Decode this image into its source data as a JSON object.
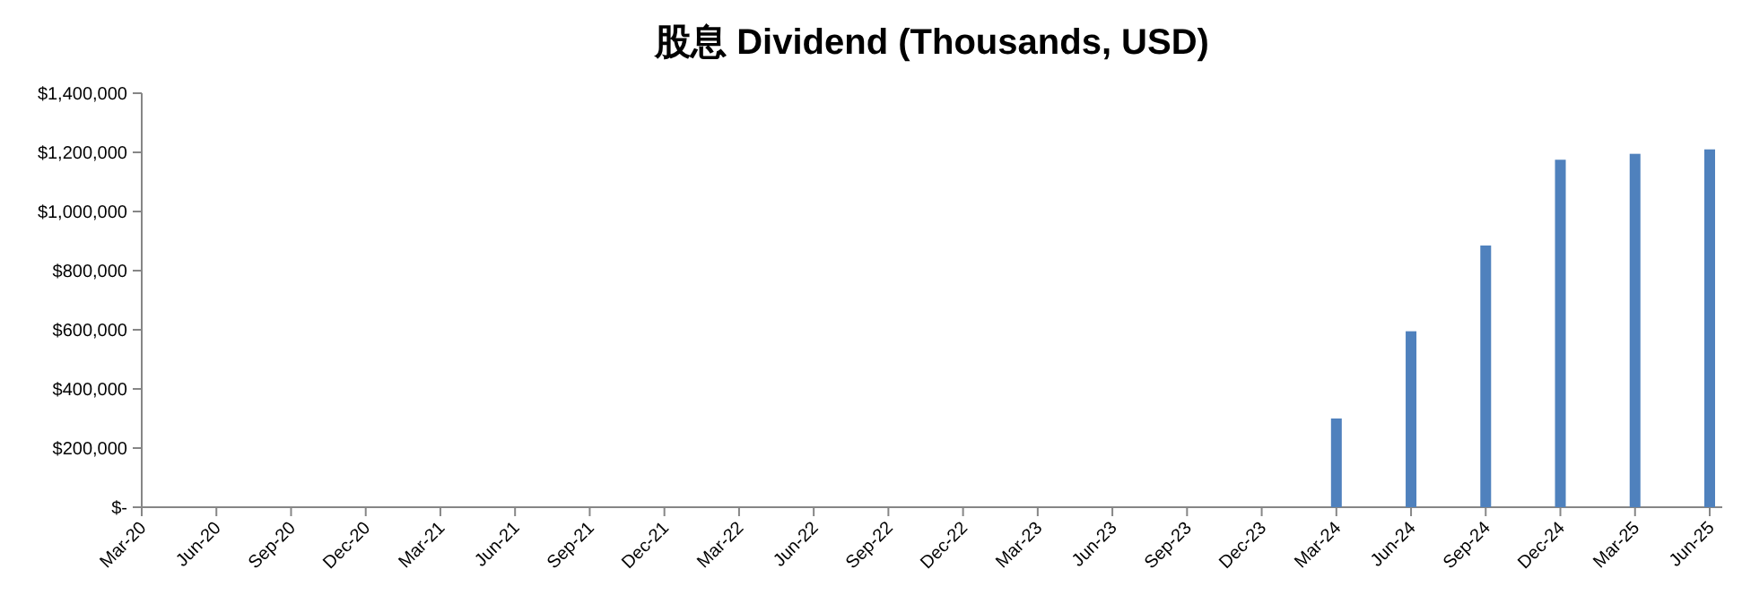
{
  "chart_data": {
    "type": "bar",
    "title": "股息 Dividend (Thousands, USD)",
    "categories": [
      "Mar-20",
      "Jun-20",
      "Sep-20",
      "Dec-20",
      "Mar-21",
      "Jun-21",
      "Sep-21",
      "Dec-21",
      "Mar-22",
      "Jun-22",
      "Sep-22",
      "Dec-22",
      "Mar-23",
      "Jun-23",
      "Sep-23",
      "Dec-23",
      "Mar-24",
      "Jun-24",
      "Sep-24",
      "Dec-24",
      "Mar-25",
      "Jun-25"
    ],
    "values": [
      null,
      null,
      null,
      null,
      null,
      null,
      null,
      null,
      null,
      null,
      null,
      null,
      null,
      null,
      null,
      null,
      300000,
      595000,
      885000,
      1175000,
      1195000,
      1210000
    ],
    "color": "#4f81bd",
    "ylim": [
      0,
      1400000
    ],
    "yticks": [
      {
        "value": 0,
        "label": "$-"
      },
      {
        "value": 200000,
        "label": "$200,000"
      },
      {
        "value": 400000,
        "label": "$400,000"
      },
      {
        "value": 600000,
        "label": "$600,000"
      },
      {
        "value": 800000,
        "label": "$800,000"
      },
      {
        "value": 1000000,
        "label": "$1,000,000"
      },
      {
        "value": 1200000,
        "label": "$1,200,000"
      },
      {
        "value": 1400000,
        "label": "$1,400,000"
      }
    ]
  }
}
